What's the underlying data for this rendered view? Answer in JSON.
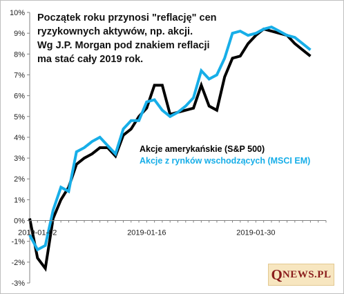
{
  "annotation": {
    "lines": [
      "Początek roku przynosi \"reflację\" cen",
      "ryzykownych aktywów, np. akcji.",
      "Wg J.P. Morgan pod znakiem reflacji",
      "ma stać cały 2019 rok."
    ]
  },
  "brand": {
    "initial": "Q",
    "rest": "NEWS.PL"
  },
  "chart_data": {
    "type": "line",
    "ylim": [
      -3,
      10
    ],
    "y_ticks": [
      -3,
      -2,
      -1,
      0,
      1,
      2,
      3,
      4,
      5,
      6,
      7,
      8,
      9,
      10
    ],
    "y_tick_labels": [
      "-3%",
      "-2%",
      "-1%",
      "0%",
      "1%",
      "2%",
      "3%",
      "4%",
      "5%",
      "6%",
      "7%",
      "8%",
      "9%",
      "10%"
    ],
    "x_ticks": [
      1,
      15,
      29
    ],
    "x_tick_labels": [
      "2019-01-02",
      "2019-01-16",
      "2019-01-30"
    ],
    "xlim": [
      0,
      38
    ],
    "grid": false,
    "legend_position": "center-right",
    "series": [
      {
        "name": "Akcje amerykańskie (S&P 500)",
        "color": "#000000",
        "x": [
          0,
          1,
          2,
          3,
          4,
          5,
          6,
          7,
          8,
          9,
          10,
          11,
          12,
          13,
          14,
          15,
          16,
          17,
          18,
          19,
          20,
          21,
          22,
          23,
          24,
          25,
          26,
          27,
          28,
          29,
          30,
          31,
          32,
          33,
          34,
          35,
          36
        ],
        "values": [
          0.1,
          -1.8,
          -2.3,
          0.1,
          1.0,
          1.6,
          2.7,
          3.0,
          3.2,
          3.5,
          3.5,
          3.1,
          4.1,
          4.4,
          5.0,
          5.4,
          6.5,
          6.5,
          5.1,
          5.2,
          5.3,
          5.4,
          6.5,
          5.5,
          5.3,
          6.9,
          7.8,
          7.9,
          8.5,
          8.9,
          9.2,
          9.1,
          9.0,
          8.9,
          8.5,
          8.2,
          7.9
        ]
      },
      {
        "name": "Akcje z rynków wschodzących (MSCI EM)",
        "color": "#17aee8",
        "x": [
          0,
          1,
          2,
          3,
          4,
          5,
          6,
          7,
          8,
          9,
          10,
          11,
          12,
          13,
          14,
          15,
          16,
          17,
          18,
          19,
          20,
          21,
          22,
          23,
          24,
          25,
          26,
          27,
          28,
          29,
          30,
          31,
          32,
          33,
          34,
          35,
          36
        ],
        "values": [
          -0.7,
          -1.4,
          -1.2,
          0.5,
          1.6,
          1.4,
          3.3,
          3.5,
          3.8,
          4.0,
          3.6,
          3.2,
          4.4,
          4.8,
          4.8,
          5.7,
          5.8,
          5.3,
          5.0,
          5.2,
          5.5,
          5.9,
          7.2,
          6.8,
          7.0,
          7.8,
          9.0,
          9.1,
          8.9,
          9.0,
          9.2,
          9.3,
          9.1,
          8.9,
          8.8,
          8.5,
          8.2
        ]
      }
    ]
  }
}
